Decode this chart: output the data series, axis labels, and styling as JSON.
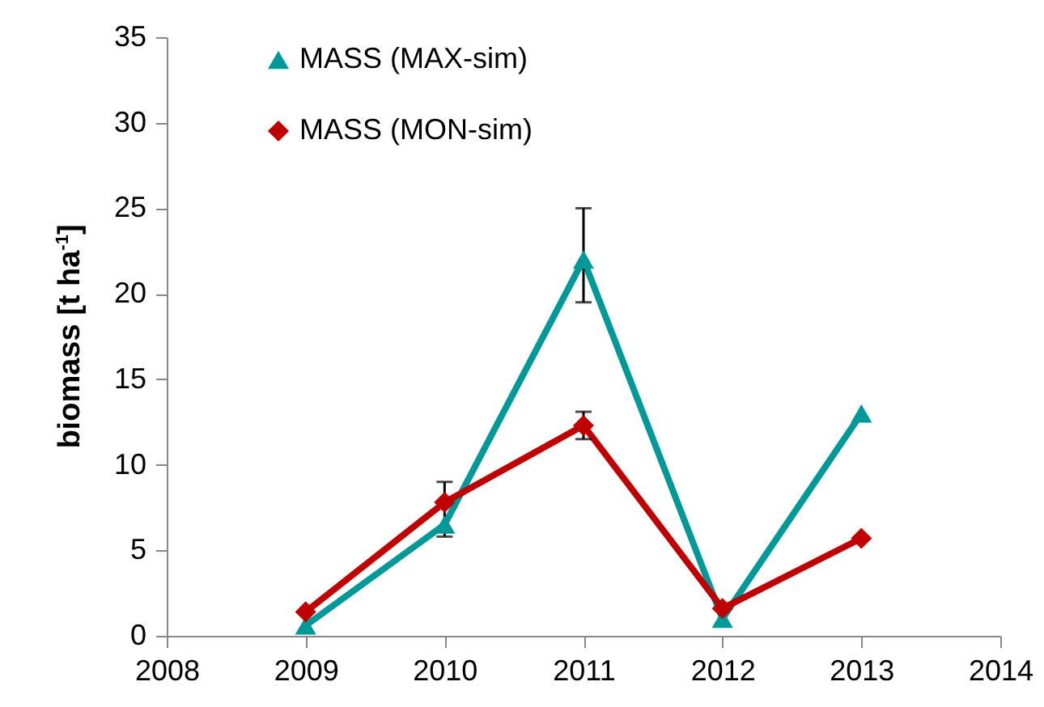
{
  "chart_data": {
    "type": "line",
    "ylabel": "biomass [t ha$^{-1}$]",
    "x": [
      2009,
      2010,
      2011,
      2012,
      2013
    ],
    "xlim": [
      2008,
      2014
    ],
    "xticks": [
      2008,
      2009,
      2010,
      2011,
      2012,
      2013,
      2014
    ],
    "ylim": [
      0,
      35
    ],
    "yticks": [
      0,
      5,
      10,
      15,
      20,
      25,
      30,
      35
    ],
    "grid": false,
    "legend": "top left",
    "line_style": "solid",
    "series": [
      {
        "name": "MASS (MAX-sim)",
        "color": "#009999",
        "marker": "triangle",
        "values": [
          0.6,
          6.5,
          22,
          1,
          13
        ],
        "errors": [
          null,
          [
            5.8,
            9
          ],
          [
            19.5,
            25
          ],
          null,
          null
        ]
      },
      {
        "name": "MASS (MON-sim)",
        "color": "#c00000",
        "marker": "diamond",
        "values": [
          1.4,
          7.8,
          12.3,
          1.6,
          5.7
        ],
        "errors": [
          null,
          null,
          0.8,
          null,
          null
        ]
      }
    ]
  }
}
